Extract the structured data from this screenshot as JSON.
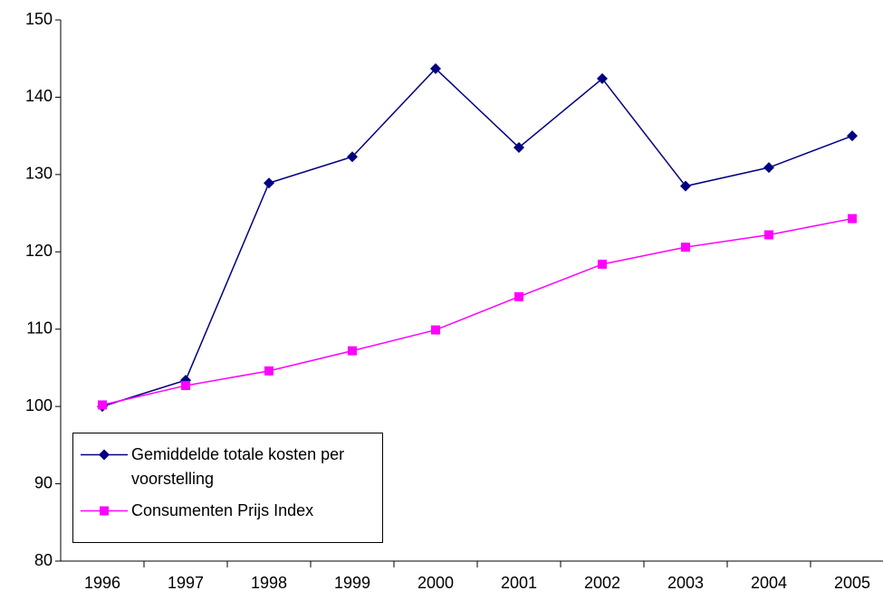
{
  "chart_data": {
    "type": "line",
    "categories": [
      "1996",
      "1997",
      "1998",
      "1999",
      "2000",
      "2001",
      "2002",
      "2003",
      "2004",
      "2005"
    ],
    "series": [
      {
        "name": "Gemiddelde totale kosten per voorstelling",
        "color": "#000080",
        "marker": "diamond",
        "values": [
          100,
          103.4,
          128.9,
          132.3,
          143.7,
          133.5,
          142.4,
          128.5,
          130.9,
          135
        ]
      },
      {
        "name": "Consumenten Prijs Index",
        "color": "#ff00ff",
        "marker": "square",
        "values": [
          100.2,
          102.7,
          104.6,
          107.2,
          109.9,
          114.2,
          118.4,
          120.6,
          122.2,
          124.3
        ]
      }
    ],
    "ylim": [
      80,
      150
    ],
    "yticks": [
      80,
      90,
      100,
      110,
      120,
      130,
      140,
      150
    ],
    "grid": false,
    "legend": "lower left"
  }
}
